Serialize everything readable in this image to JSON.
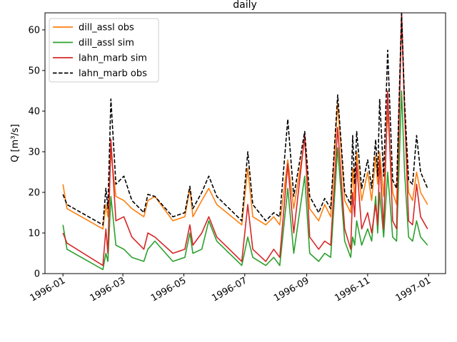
{
  "chart_data": {
    "type": "line",
    "title": "daily",
    "xlabel": "",
    "ylabel": "Q [m³/s]",
    "xlim": [
      "1995-12-14",
      "1997-01-18"
    ],
    "ylim": [
      0,
      64.2
    ],
    "grid": false,
    "legend_placement": "top-left",
    "x_ticks": [
      "1996-01",
      "1996-03",
      "1996-05",
      "1996-07",
      "1996-09",
      "1996-11",
      "1997-01"
    ],
    "y_ticks": [
      0,
      10,
      20,
      30,
      40,
      50,
      60
    ],
    "x": [
      "1996-01-01",
      "1996-01-05",
      "1996-02-10",
      "1996-02-13",
      "1996-02-15",
      "1996-02-18",
      "1996-02-23",
      "1996-03-02",
      "1996-03-10",
      "1996-03-22",
      "1996-03-26",
      "1996-04-02",
      "1996-04-20",
      "1996-05-02",
      "1996-05-07",
      "1996-05-10",
      "1996-05-19",
      "1996-05-26",
      "1996-06-03",
      "1996-06-28",
      "1996-07-04",
      "1996-07-09",
      "1996-07-22",
      "1996-07-30",
      "1996-08-05",
      "1996-08-13",
      "1996-08-19",
      "1996-08-30",
      "1996-09-04",
      "1996-09-13",
      "1996-09-19",
      "1996-09-25",
      "1996-10-02",
      "1996-10-09",
      "1996-10-15",
      "1996-10-17",
      "1996-10-19",
      "1996-10-21",
      "1996-10-26",
      "1996-11-01",
      "1996-11-05",
      "1996-11-09",
      "1996-11-11",
      "1996-11-13",
      "1996-11-17",
      "1996-11-21",
      "1996-11-26",
      "1996-11-30",
      "1996-12-05",
      "1996-12-08",
      "1996-12-12",
      "1996-12-16",
      "1996-12-20",
      "1996-12-24",
      "1996-12-31"
    ],
    "series": [
      {
        "name": "dill_assl obs",
        "color": "#ff7f0e",
        "style": "solid",
        "values": [
          22,
          16,
          11,
          17,
          14,
          30,
          19,
          18,
          16,
          14,
          18,
          19,
          13,
          14,
          21,
          14,
          18,
          21,
          17,
          12,
          26,
          14,
          12,
          14,
          12,
          28,
          16,
          33,
          16,
          13,
          17,
          14,
          42,
          18,
          15,
          26,
          18,
          30,
          18,
          25,
          18,
          29,
          22,
          30,
          19,
          40,
          20,
          17,
          64,
          40,
          20,
          18,
          25,
          20,
          17
        ]
      },
      {
        "name": "dill_assl sim",
        "color": "#2ca02c",
        "style": "solid",
        "values": [
          12,
          6,
          1,
          5,
          3,
          19,
          7,
          6,
          4,
          3,
          6,
          8,
          3,
          4,
          10,
          5,
          6,
          13,
          8,
          2,
          9,
          4,
          2,
          4,
          2,
          21,
          5,
          24,
          5,
          3,
          5,
          4,
          31,
          8,
          4,
          9,
          7,
          13,
          7,
          11,
          8,
          19,
          10,
          20,
          9,
          25,
          9,
          8,
          45,
          25,
          9,
          8,
          13,
          9,
          7
        ]
      },
      {
        "name": "lahn_marb sim",
        "color": "#d62728",
        "style": "solid",
        "values": [
          10,
          7.5,
          2,
          11,
          5,
          33,
          13,
          14,
          9,
          6,
          10,
          9,
          5,
          6,
          12,
          7,
          10,
          14,
          9,
          3,
          17,
          6,
          3,
          6,
          4,
          27,
          10,
          34,
          9,
          6,
          8,
          7,
          36,
          11,
          6,
          20,
          14,
          27,
          11,
          15,
          10,
          17,
          12,
          28,
          11,
          45,
          13,
          11,
          64,
          40,
          13,
          12,
          22,
          14,
          11
        ]
      },
      {
        "name": "lahn_marb obs",
        "color": "#000000",
        "style": "dashed",
        "values": [
          19.5,
          17,
          12,
          21,
          16,
          43,
          22,
          24,
          18,
          15,
          19.5,
          19,
          14,
          15,
          21.5,
          16,
          20,
          24,
          19,
          13,
          30,
          17,
          13,
          15,
          14,
          38,
          19,
          35,
          19,
          15,
          18.5,
          16,
          44,
          20,
          17,
          34,
          22,
          35,
          21,
          28,
          21,
          33,
          24,
          43,
          24,
          55,
          23,
          21,
          64,
          42,
          23,
          22,
          34,
          25,
          21
        ]
      }
    ]
  }
}
